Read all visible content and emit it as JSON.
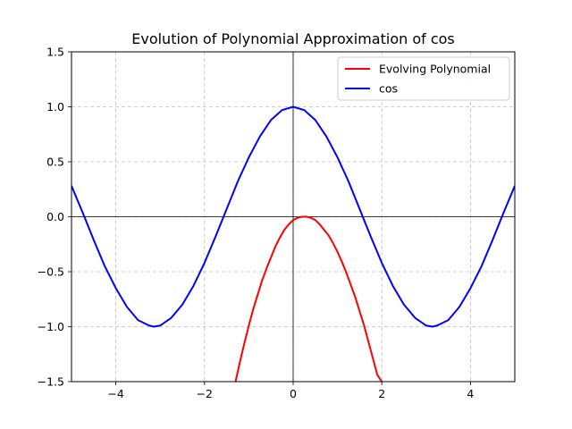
{
  "chart_data": {
    "type": "line",
    "title": "Evolution of Polynomial Approximation of cos",
    "xlabel": "",
    "ylabel": "",
    "xlim": [
      -5,
      5
    ],
    "ylim": [
      -1.5,
      1.5
    ],
    "xticks": [
      -4,
      -2,
      0,
      2,
      4
    ],
    "xtick_labels": [
      "−4",
      "−2",
      "0",
      "2",
      "4"
    ],
    "yticks": [
      -1.5,
      -1.0,
      -0.5,
      0.0,
      0.5,
      1.0,
      1.5
    ],
    "ytick_labels": [
      "−1.5",
      "−1.0",
      "−0.5",
      "0.0",
      "0.5",
      "1.0",
      "1.5"
    ],
    "grid": true,
    "legend_position": "upper-right",
    "series": [
      {
        "name": "Evolving Polynomial",
        "color": "#ff0000",
        "x": [
          -1.3,
          -1.2,
          -1.1,
          -1.0,
          -0.9,
          -0.8,
          -0.7,
          -0.6,
          -0.5,
          -0.4,
          -0.3,
          -0.2,
          -0.1,
          0.0,
          0.1,
          0.2,
          0.25,
          0.3,
          0.4,
          0.5,
          0.6,
          0.7,
          0.8,
          0.9,
          1.0,
          1.1,
          1.2,
          1.3,
          1.4,
          1.5,
          1.6,
          1.7,
          1.8,
          1.9,
          2.0
        ],
        "values": [
          -1.5,
          -1.32,
          -1.15,
          -0.99,
          -0.84,
          -0.71,
          -0.58,
          -0.47,
          -0.37,
          -0.27,
          -0.19,
          -0.12,
          -0.07,
          -0.03,
          -0.01,
          0.0,
          0.0,
          0.0,
          -0.01,
          -0.03,
          -0.07,
          -0.12,
          -0.17,
          -0.24,
          -0.32,
          -0.41,
          -0.51,
          -0.62,
          -0.73,
          -0.86,
          -0.99,
          -1.14,
          -1.29,
          -1.44,
          -1.5
        ]
      },
      {
        "name": "cos",
        "color": "#0000ff",
        "x": [
          -5.0,
          -4.75,
          -4.5,
          -4.25,
          -4.0,
          -3.75,
          -3.5,
          -3.25,
          -3.14,
          -3.0,
          -2.75,
          -2.5,
          -2.25,
          -2.0,
          -1.75,
          -1.5,
          -1.25,
          -1.0,
          -0.75,
          -0.5,
          -0.25,
          0.0,
          0.25,
          0.5,
          0.75,
          1.0,
          1.25,
          1.5,
          1.75,
          2.0,
          2.25,
          2.5,
          2.75,
          3.0,
          3.14,
          3.25,
          3.5,
          3.75,
          4.0,
          4.25,
          4.5,
          4.75,
          5.0
        ],
        "values": [
          0.28,
          0.04,
          -0.21,
          -0.45,
          -0.65,
          -0.82,
          -0.94,
          -0.99,
          -1.0,
          -0.99,
          -0.92,
          -0.8,
          -0.63,
          -0.42,
          -0.18,
          0.07,
          0.32,
          0.54,
          0.73,
          0.88,
          0.97,
          1.0,
          0.97,
          0.88,
          0.73,
          0.54,
          0.32,
          0.07,
          -0.18,
          -0.42,
          -0.63,
          -0.8,
          -0.92,
          -0.99,
          -1.0,
          -0.99,
          -0.94,
          -0.82,
          -0.65,
          -0.45,
          -0.21,
          0.04,
          0.28
        ]
      }
    ]
  }
}
